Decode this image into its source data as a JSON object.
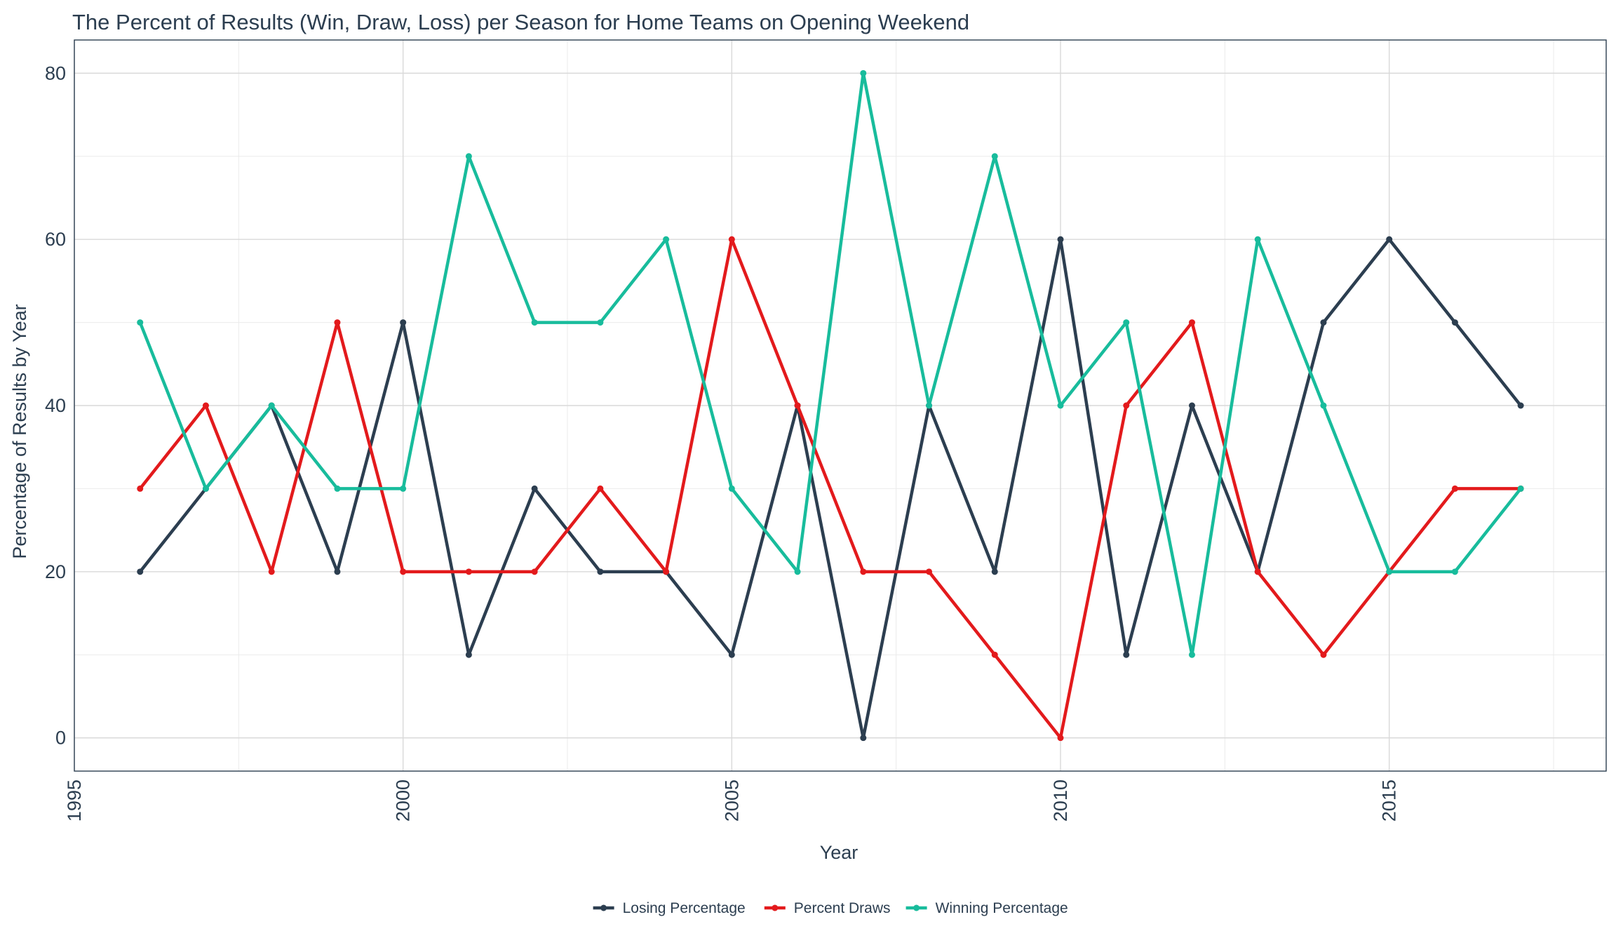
{
  "chart_data": {
    "type": "line",
    "title": "The Percent of Results (Win, Draw, Loss) per Season for Home Teams on Opening Weekend",
    "xlabel": "Year",
    "ylabel": "Percentage of Results by Year",
    "xlim": [
      1995,
      2018.3
    ],
    "ylim": [
      -4,
      84
    ],
    "x_ticks": [
      1995,
      2000,
      2005,
      2010,
      2015
    ],
    "y_ticks": [
      0,
      20,
      40,
      60,
      80
    ],
    "grid": true,
    "legend_position": "bottom",
    "x": [
      1996,
      1997,
      1998,
      1999,
      2000,
      2001,
      2002,
      2003,
      2004,
      2005,
      2006,
      2007,
      2008,
      2009,
      2010,
      2011,
      2012,
      2013,
      2014,
      2015,
      2016,
      2017
    ],
    "series": [
      {
        "name": "Losing Percentage",
        "color": "#2c3e50",
        "values": [
          20,
          30,
          40,
          20,
          50,
          10,
          30,
          20,
          20,
          10,
          40,
          0,
          40,
          20,
          60,
          10,
          40,
          20,
          50,
          60,
          50,
          40
        ]
      },
      {
        "name": "Percent Draws",
        "color": "#e31a1c",
        "values": [
          30,
          40,
          20,
          50,
          20,
          20,
          20,
          30,
          20,
          60,
          40,
          20,
          20,
          10,
          0,
          40,
          50,
          20,
          10,
          20,
          30,
          30
        ]
      },
      {
        "name": "Winning Percentage",
        "color": "#18bc9c",
        "values": [
          50,
          30,
          40,
          30,
          30,
          70,
          50,
          50,
          60,
          30,
          20,
          80,
          40,
          70,
          40,
          50,
          10,
          60,
          40,
          20,
          20,
          30
        ]
      }
    ]
  }
}
